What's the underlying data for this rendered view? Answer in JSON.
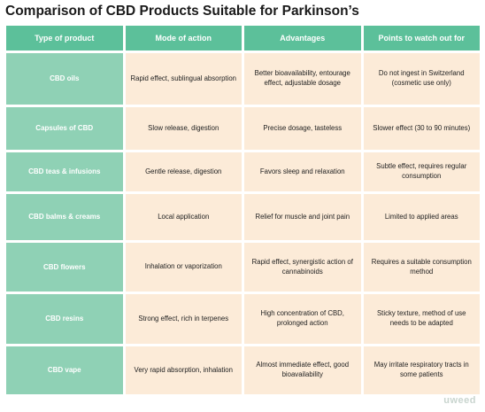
{
  "title": "Comparison of CBD Products Suitable for Parkinson’s",
  "headers": [
    "Type of product",
    "Mode of action",
    "Advantages",
    "Points to watch out for"
  ],
  "rows": [
    {
      "type": "CBD oils",
      "mode": "Rapid effect, sublingual absorption",
      "advantages": "Better bioavailability, entourage effect, adjustable dosage",
      "watch": "Do not ingest in Switzerland (cosmetic use only)"
    },
    {
      "type": "Capsules of CBD",
      "mode": "Slow release, digestion",
      "advantages": "Precise dosage, tasteless",
      "watch": "Slower effect (30 to 90 minutes)"
    },
    {
      "type": "CBD teas & infusions",
      "mode": "Gentle release, digestion",
      "advantages": "Favors sleep and relaxation",
      "watch": "Subtle effect, requires regular consumption"
    },
    {
      "type": "CBD balms & creams",
      "mode": "Local application",
      "advantages": "Relief for muscle and joint pain",
      "watch": "Limited to applied areas"
    },
    {
      "type": "CBD flowers",
      "mode": "Inhalation or vaporization",
      "advantages": "Rapid effect, synergistic action of cannabinoids",
      "watch": "Requires a suitable consumption method"
    },
    {
      "type": "CBD resins",
      "mode": "Strong effect, rich in terpenes",
      "advantages": "High concentration of CBD, prolonged action",
      "watch": "Sticky texture, method of use needs to be adapted"
    },
    {
      "type": "CBD vape",
      "mode": "Very rapid absorption, inhalation",
      "advantages": "Almost immediate effect, good bioavailability",
      "watch": "May irritate respiratory tracts in some patients"
    }
  ],
  "logo": "uweed",
  "colors": {
    "header_bg": "#5cc09a",
    "first_col_bg": "#8fd1b5",
    "cell_bg": "#fcebd8"
  }
}
